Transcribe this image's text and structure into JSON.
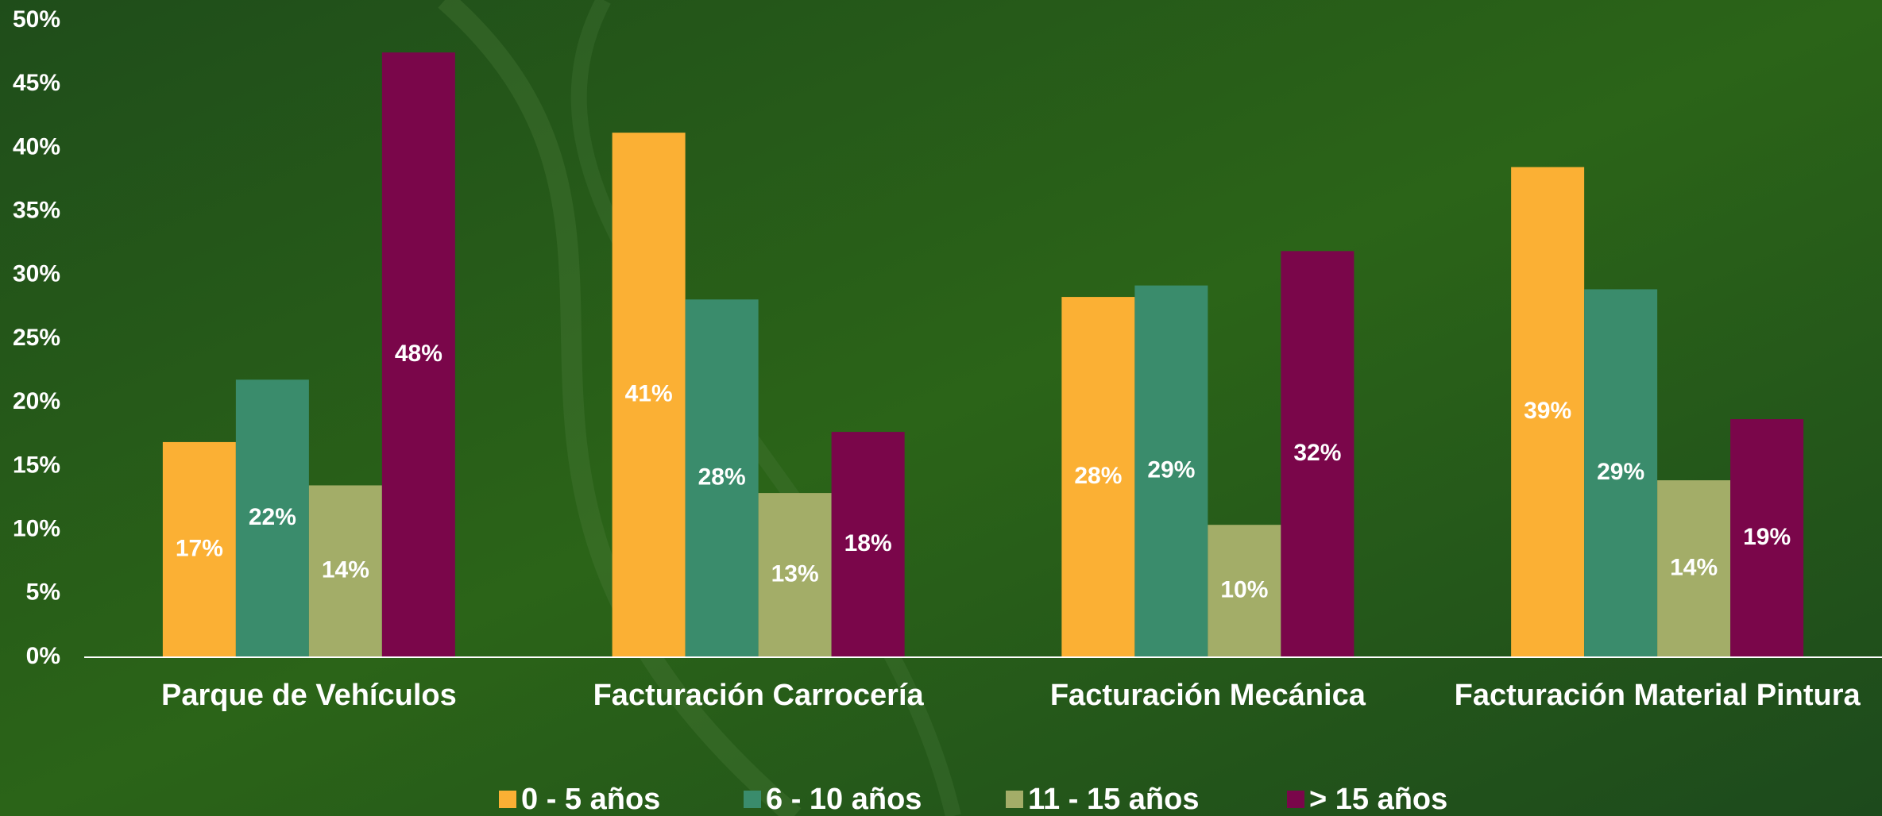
{
  "chart_data": {
    "type": "bar",
    "categories": [
      "Parque de Vehículos",
      "Facturación Carrocería",
      "Facturación Mecánica",
      "Facturación Material Pintura"
    ],
    "series": [
      {
        "name": "0 - 5 años",
        "color": "#fbb034",
        "values": [
          16.9,
          41.2,
          28.3,
          38.5
        ],
        "value_labels": [
          "17%",
          "41%",
          "28%",
          "39%"
        ]
      },
      {
        "name": "6 - 10 años",
        "color": "#3a8c6c",
        "values": [
          21.8,
          28.1,
          29.2,
          28.9
        ],
        "value_labels": [
          "22%",
          "28%",
          "29%",
          "29%"
        ]
      },
      {
        "name": "11 - 15 años",
        "color": "#a3ad68",
        "values": [
          13.5,
          12.9,
          10.4,
          13.9
        ],
        "value_labels": [
          "14%",
          "13%",
          "10%",
          "14%"
        ]
      },
      {
        "name": "> 15 años",
        "color": "#7a064a",
        "values": [
          47.5,
          17.7,
          31.9,
          18.7
        ],
        "value_labels": [
          "48%",
          "18%",
          "32%",
          "19%"
        ]
      }
    ],
    "ylim": [
      0,
      50
    ],
    "yticks": [
      {
        "value": 0,
        "label": "0%"
      },
      {
        "value": 5,
        "label": "5%"
      },
      {
        "value": 10,
        "label": "10%"
      },
      {
        "value": 15,
        "label": "15%"
      },
      {
        "value": 20,
        "label": "20%"
      },
      {
        "value": 25,
        "label": "25%"
      },
      {
        "value": 30,
        "label": "30%"
      },
      {
        "value": 35,
        "label": "35%"
      },
      {
        "value": 40,
        "label": "40%"
      },
      {
        "value": 45,
        "label": "45%"
      },
      {
        "value": 50,
        "label": "50%"
      }
    ],
    "grid": false,
    "legend": "bottom"
  }
}
